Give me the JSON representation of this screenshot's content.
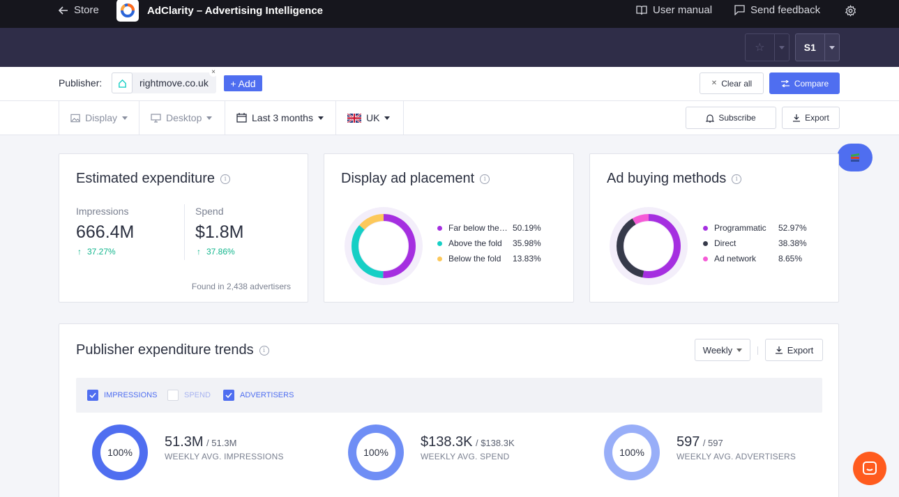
{
  "topbar": {
    "store_label": "Store",
    "app_title": "AdClarity – Advertising Intelligence",
    "manual_label": "User manual",
    "feedback_label": "Send feedback"
  },
  "subbar": {
    "workspace_label": "S1"
  },
  "publisher_row": {
    "label": "Publisher:",
    "publisher": "rightmove.co.uk",
    "add_label": "+ Add",
    "clear_label": "Clear all",
    "compare_label": "Compare"
  },
  "filters": {
    "type": "Display",
    "device": "Desktop",
    "period": "Last 3 months",
    "country": "UK",
    "subscribe_label": "Subscribe",
    "export_label": "Export"
  },
  "expenditure": {
    "title": "Estimated expenditure",
    "impressions_label": "Impressions",
    "impressions_value": "666.4M",
    "impressions_change": "37.27%",
    "spend_label": "Spend",
    "spend_value": "$1.8M",
    "spend_change": "37.86%",
    "footer": "Found in 2,438 advertisers"
  },
  "placement": {
    "title": "Display ad placement",
    "items": [
      {
        "label": "Far below the…",
        "value": "50.19%",
        "pct": 50.19,
        "color": "#a52fe0"
      },
      {
        "label": "Above the fold",
        "value": "35.98%",
        "pct": 35.98,
        "color": "#16cfc5"
      },
      {
        "label": "Below the fold",
        "value": "13.83%",
        "pct": 13.83,
        "color": "#fcc85a"
      }
    ]
  },
  "buying": {
    "title": "Ad buying methods",
    "items": [
      {
        "label": "Programmatic",
        "value": "52.97%",
        "pct": 52.97,
        "color": "#a52fe0"
      },
      {
        "label": "Direct",
        "value": "38.38%",
        "pct": 38.38,
        "color": "#363a4a"
      },
      {
        "label": "Ad network",
        "value": "8.65%",
        "pct": 8.65,
        "color": "#f55bd6"
      }
    ]
  },
  "trends": {
    "title": "Publisher expenditure trends",
    "interval": "Weekly",
    "export_label": "Export",
    "toggles": [
      {
        "label": "IMPRESSIONS",
        "checked": true
      },
      {
        "label": "SPEND",
        "checked": false
      },
      {
        "label": "ADVERTISERS",
        "checked": true
      }
    ],
    "metrics": [
      {
        "pct_label": "100%",
        "pct": 100,
        "value": "51.3M",
        "total": "/ 51.3M",
        "caption": "WEEKLY AVG. IMPRESSIONS",
        "color": "#4f6ef0"
      },
      {
        "pct_label": "100%",
        "pct": 100,
        "value": "$138.3K",
        "total": "/ $138.3K",
        "caption": "WEEKLY AVG. SPEND",
        "color": "#6f8ef5"
      },
      {
        "pct_label": "100%",
        "pct": 100,
        "value": "597",
        "total": "/ 597",
        "caption": "WEEKLY AVG. ADVERTISERS",
        "color": "#98aef8"
      }
    ]
  },
  "colors": {
    "accent": "#4f6ef0",
    "positive": "#10b58c",
    "chat": "#ff5b1e"
  }
}
